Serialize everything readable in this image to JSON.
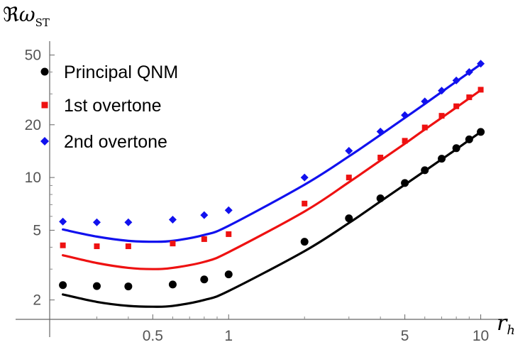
{
  "chart_data": {
    "type": "scatter",
    "title": "",
    "xlabel": "r_h",
    "ylabel": "ℜω_ST",
    "xscale": "log",
    "yscale": "log",
    "xlim": [
      0.195,
      12.5
    ],
    "ylim": [
      1.55,
      60
    ],
    "x_ticks": [
      {
        "v": 0.5,
        "label": "0.5"
      },
      {
        "v": 1,
        "label": "1"
      },
      {
        "v": 5,
        "label": "5"
      },
      {
        "v": 10,
        "label": "10"
      }
    ],
    "y_ticks": [
      {
        "v": 2,
        "label": "2"
      },
      {
        "v": 5,
        "label": "5"
      },
      {
        "v": 10,
        "label": "10"
      },
      {
        "v": 20,
        "label": "20"
      },
      {
        "v": 50,
        "label": "50"
      }
    ],
    "legend_position": "top-left",
    "series": [
      {
        "name": "Principal QNM",
        "color": "#000000",
        "marker": "circle",
        "points": [
          [
            0.22,
            2.43
          ],
          [
            0.3,
            2.4
          ],
          [
            0.4,
            2.39
          ],
          [
            0.6,
            2.45
          ],
          [
            0.8,
            2.62
          ],
          [
            1.0,
            2.8
          ],
          [
            2.0,
            4.3
          ],
          [
            3.0,
            5.85
          ],
          [
            4.0,
            7.6
          ],
          [
            5.0,
            9.3
          ],
          [
            6.0,
            11.0
          ],
          [
            7.0,
            12.8
          ],
          [
            8.0,
            14.7
          ],
          [
            9.0,
            16.5
          ],
          [
            10.0,
            18.2
          ]
        ],
        "fit": [
          [
            0.22,
            2.15
          ],
          [
            0.3,
            1.95
          ],
          [
            0.4,
            1.85
          ],
          [
            0.5,
            1.83
          ],
          [
            0.6,
            1.85
          ],
          [
            0.8,
            2.0
          ],
          [
            1.0,
            2.25
          ],
          [
            2.0,
            3.8
          ],
          [
            3.0,
            5.5
          ],
          [
            4.0,
            7.3
          ],
          [
            5.0,
            9.1
          ],
          [
            6.0,
            10.9
          ],
          [
            7.0,
            12.7
          ],
          [
            8.0,
            14.5
          ],
          [
            10.0,
            18.2
          ]
        ]
      },
      {
        "name": "1st overtone",
        "color": "#ee1111",
        "marker": "square",
        "points": [
          [
            0.22,
            4.1
          ],
          [
            0.3,
            4.05
          ],
          [
            0.4,
            4.05
          ],
          [
            0.6,
            4.2
          ],
          [
            0.8,
            4.45
          ],
          [
            1.0,
            4.75
          ],
          [
            2.0,
            7.1
          ],
          [
            3.0,
            10.0
          ],
          [
            4.0,
            13.0
          ],
          [
            5.0,
            16.2
          ],
          [
            6.0,
            19.3
          ],
          [
            7.0,
            22.5
          ],
          [
            8.0,
            25.5
          ],
          [
            9.0,
            28.7
          ],
          [
            10.0,
            31.7
          ]
        ],
        "fit": [
          [
            0.22,
            3.6
          ],
          [
            0.3,
            3.25
          ],
          [
            0.4,
            3.05
          ],
          [
            0.5,
            3.0
          ],
          [
            0.6,
            3.05
          ],
          [
            0.8,
            3.3
          ],
          [
            1.0,
            3.75
          ],
          [
            2.0,
            6.4
          ],
          [
            3.0,
            9.4
          ],
          [
            4.0,
            12.5
          ],
          [
            5.0,
            15.6
          ],
          [
            6.0,
            18.8
          ],
          [
            8.0,
            25.1
          ],
          [
            10.0,
            31.5
          ]
        ]
      },
      {
        "name": "2nd overtone",
        "color": "#1111ee",
        "marker": "diamond",
        "points": [
          [
            0.22,
            5.6
          ],
          [
            0.3,
            5.55
          ],
          [
            0.4,
            5.55
          ],
          [
            0.6,
            5.75
          ],
          [
            0.8,
            6.1
          ],
          [
            1.0,
            6.5
          ],
          [
            2.0,
            10.0
          ],
          [
            3.0,
            14.2
          ],
          [
            4.0,
            18.3
          ],
          [
            5.0,
            22.7
          ],
          [
            6.0,
            27.2
          ],
          [
            7.0,
            31.3
          ],
          [
            8.0,
            35.8
          ],
          [
            9.0,
            40.0
          ],
          [
            10.0,
            44.6
          ]
        ],
        "fit": [
          [
            0.22,
            5.05
          ],
          [
            0.3,
            4.6
          ],
          [
            0.4,
            4.35
          ],
          [
            0.5,
            4.3
          ],
          [
            0.6,
            4.35
          ],
          [
            0.8,
            4.7
          ],
          [
            1.0,
            5.3
          ],
          [
            2.0,
            9.1
          ],
          [
            3.0,
            13.2
          ],
          [
            4.0,
            17.5
          ],
          [
            5.0,
            21.9
          ],
          [
            6.0,
            26.3
          ],
          [
            8.0,
            35.3
          ],
          [
            10.0,
            44.3
          ]
        ]
      }
    ]
  }
}
